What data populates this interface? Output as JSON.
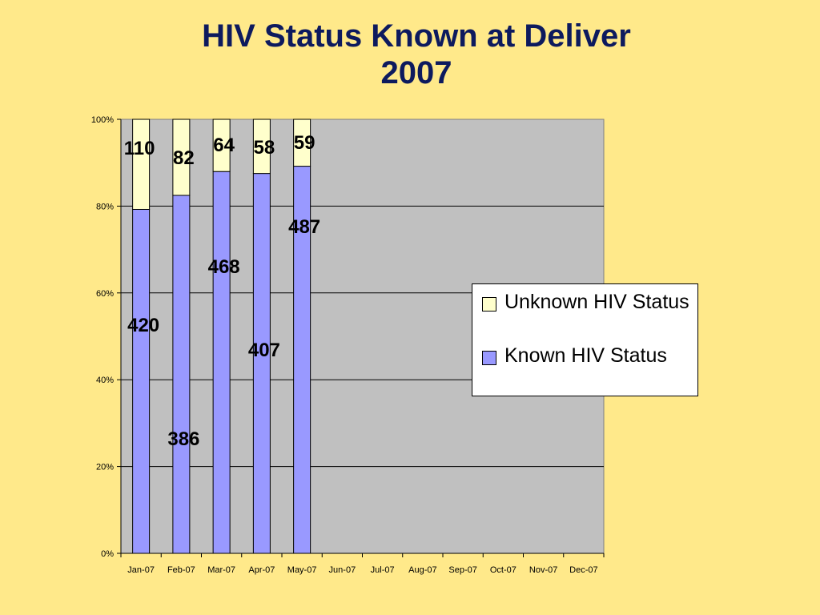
{
  "title": {
    "line1": "HIV Status Known at Deliver",
    "line2": "2007"
  },
  "colors": {
    "background": "#FFE98A",
    "plot_area": "#C0C0C0",
    "known": "#9999FF",
    "unknown": "#FFFFCC",
    "title": "#0D1A5E"
  },
  "chart_data": {
    "type": "bar",
    "stacked": "percent",
    "categories": [
      "Jan-07",
      "Feb-07",
      "Mar-07",
      "Apr-07",
      "May-07",
      "Jun-07",
      "Jul-07",
      "Aug-07",
      "Sep-07",
      "Oct-07",
      "Nov-07",
      "Dec-07"
    ],
    "series": [
      {
        "name": "Known HIV Status",
        "values": [
          420,
          386,
          468,
          407,
          487,
          null,
          null,
          null,
          null,
          null,
          null,
          null
        ]
      },
      {
        "name": "Unknown HIV Status",
        "values": [
          110,
          82,
          64,
          58,
          59,
          null,
          null,
          null,
          null,
          null,
          null,
          null
        ]
      }
    ],
    "y_ticks": [
      "0%",
      "20%",
      "40%",
      "60%",
      "80%",
      "100%"
    ],
    "ylim": [
      0,
      100
    ],
    "grid": true,
    "legend_position": "right",
    "xlabel": "",
    "ylabel": ""
  },
  "legend": {
    "items": [
      {
        "label": "Unknown HIV Status",
        "color": "#FFFFCC"
      },
      {
        "label": "Known HIV Status",
        "color": "#9999FF"
      }
    ]
  }
}
